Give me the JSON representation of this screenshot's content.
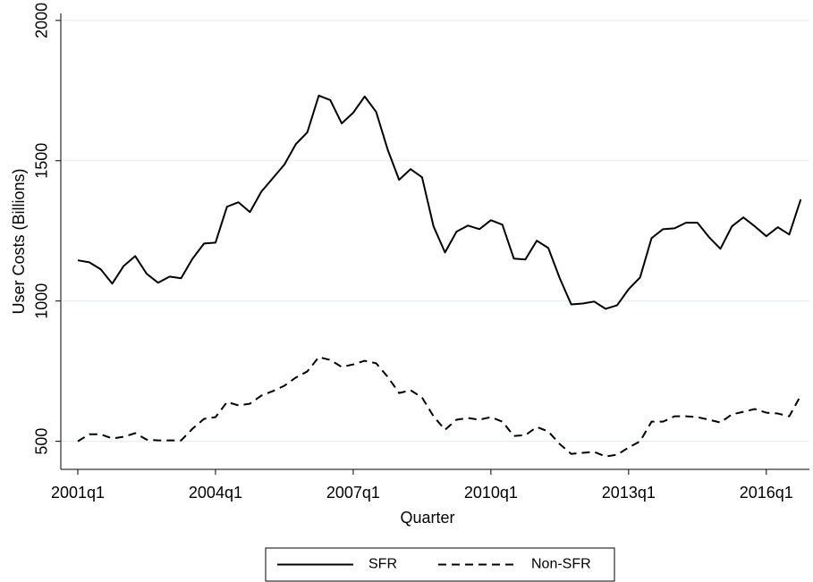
{
  "chart_data": {
    "type": "line",
    "ylabel": "User Costs (Billions)",
    "xlabel": "Quarter",
    "categories": [
      "2001q1",
      null,
      null,
      null,
      null,
      null,
      null,
      null,
      null,
      null,
      null,
      null,
      "2004q1",
      null,
      null,
      null,
      null,
      null,
      null,
      null,
      null,
      null,
      null,
      null,
      "2007q1",
      null,
      null,
      null,
      null,
      null,
      null,
      null,
      null,
      null,
      null,
      null,
      "2010q1",
      null,
      null,
      null,
      null,
      null,
      null,
      null,
      null,
      null,
      null,
      null,
      "2013q1",
      null,
      null,
      null,
      null,
      null,
      null,
      null,
      null,
      null,
      null,
      null,
      "2016q1",
      null,
      null,
      null
    ],
    "series": [
      {
        "name": "SFR",
        "color": "#000000",
        "dash": "solid",
        "values": [
          1145,
          1138,
          1113,
          1062,
          1125,
          1160,
          1097,
          1065,
          1087,
          1081,
          1151,
          1205,
          1208,
          1336,
          1352,
          1317,
          1390,
          1438,
          1486,
          1559,
          1601,
          1732,
          1716,
          1633,
          1671,
          1729,
          1674,
          1540,
          1432,
          1470,
          1441,
          1266,
          1173,
          1247,
          1269,
          1256,
          1288,
          1272,
          1151,
          1148,
          1215,
          1189,
          1081,
          988,
          991,
          998,
          972,
          985,
          1042,
          1084,
          1224,
          1256,
          1259,
          1279,
          1279,
          1228,
          1186,
          1266,
          1298,
          1266,
          1231,
          1263,
          1237,
          1362
        ]
      },
      {
        "name": "Non-SFR",
        "color": "#000000",
        "dash": "dashed",
        "values": [
          500,
          525,
          525,
          510,
          516,
          529,
          506,
          503,
          503,
          503,
          545,
          580,
          586,
          640,
          628,
          634,
          663,
          679,
          698,
          727,
          749,
          800,
          790,
          765,
          774,
          787,
          778,
          730,
          672,
          682,
          656,
          589,
          541,
          577,
          583,
          577,
          586,
          570,
          519,
          522,
          551,
          535,
          490,
          455,
          459,
          462,
          446,
          452,
          478,
          500,
          570,
          570,
          589,
          589,
          586,
          577,
          567,
          596,
          605,
          615,
          602,
          599,
          589,
          663
        ]
      }
    ],
    "ylim": [
      400,
      2025
    ],
    "yticks": [
      500,
      1000,
      1500,
      2000
    ],
    "grid": true,
    "legend": "bottom"
  }
}
